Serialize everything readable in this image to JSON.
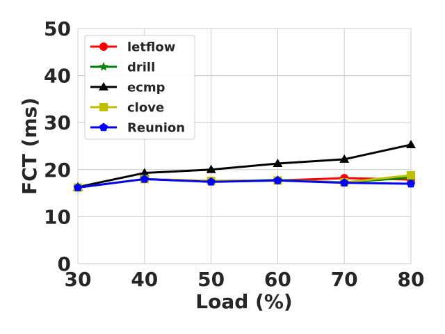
{
  "chart_data": {
    "type": "line",
    "xlabel": "Load (%)",
    "ylabel": "FCT (ms)",
    "xlim": [
      30,
      80
    ],
    "ylim": [
      0,
      50
    ],
    "x": [
      30,
      40,
      50,
      60,
      70,
      80
    ],
    "xticks": [
      "30",
      "40",
      "50",
      "60",
      "70",
      "80"
    ],
    "yticks": [
      "0",
      "10",
      "20",
      "30",
      "40",
      "50"
    ],
    "grid": true,
    "legend_position": "top-left",
    "series": [
      {
        "name": "letflow",
        "color": "#ff0000",
        "marker": "circle",
        "values": [
          16.2,
          18.0,
          17.6,
          17.7,
          18.2,
          17.9
        ]
      },
      {
        "name": "drill",
        "color": "#008000",
        "marker": "star",
        "values": [
          16.2,
          18.0,
          17.5,
          17.8,
          17.3,
          18.3
        ]
      },
      {
        "name": "ecmp",
        "color": "#000000",
        "marker": "triangle",
        "values": [
          16.3,
          19.3,
          20.0,
          21.3,
          22.2,
          25.3
        ]
      },
      {
        "name": "clove",
        "color": "#bfbf00",
        "marker": "square",
        "values": [
          16.2,
          18.0,
          17.6,
          17.7,
          17.3,
          18.8
        ]
      },
      {
        "name": "Reunion",
        "color": "#0000ff",
        "marker": "pentagon",
        "values": [
          16.2,
          18.0,
          17.4,
          17.7,
          17.2,
          17.0
        ]
      }
    ]
  }
}
